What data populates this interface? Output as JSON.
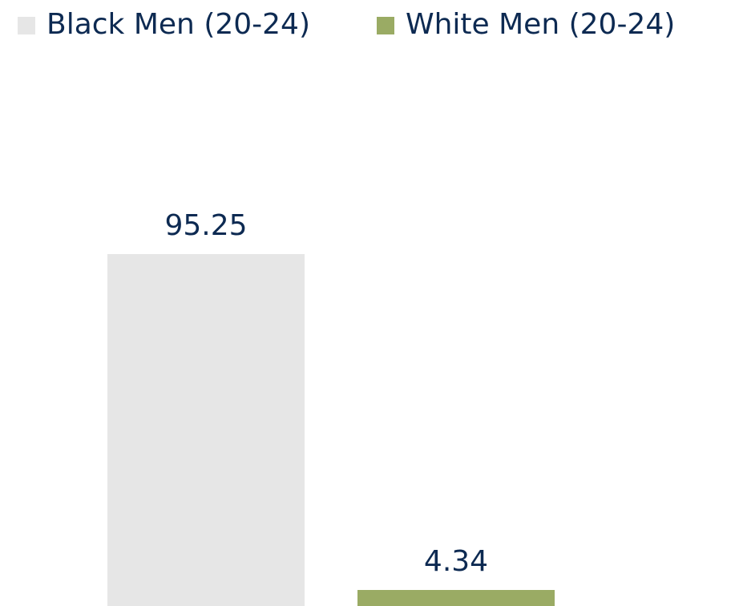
{
  "chart_data": {
    "type": "bar",
    "categories": [
      null
    ],
    "series": [
      {
        "name": "Black Men (20-24)",
        "color": "#e6e6e6",
        "values": [
          95.25
        ]
      },
      {
        "name": "White Men (20-24)",
        "color": "#9aab64",
        "values": [
          4.34
        ]
      }
    ]
  }
}
